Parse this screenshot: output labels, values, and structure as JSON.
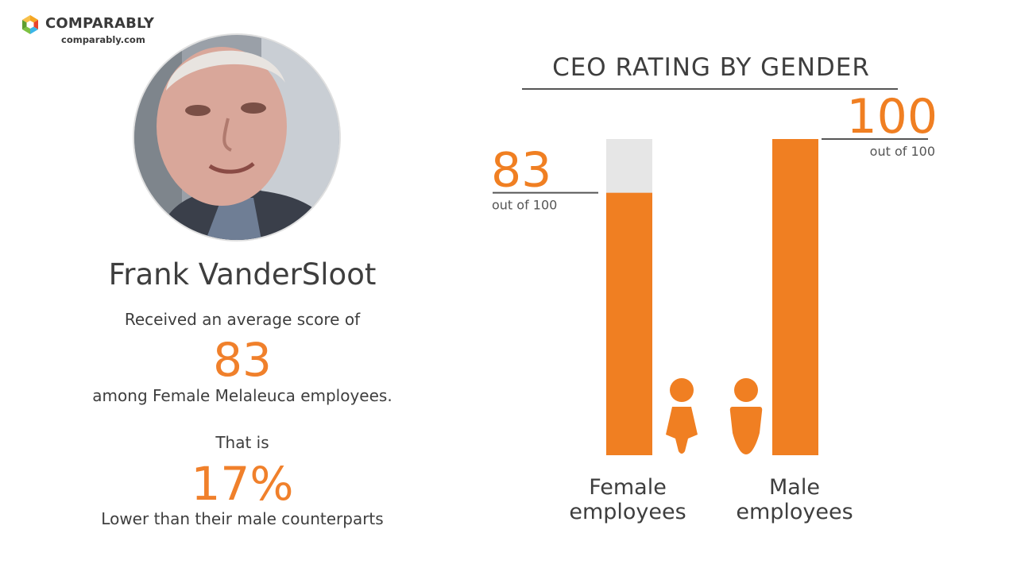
{
  "brand": {
    "name": "COMPARABLY",
    "url": "comparably.com",
    "colors": [
      "#f5a623",
      "#e8452c",
      "#3bb6e8",
      "#7dc142"
    ]
  },
  "profile": {
    "name": "Frank VanderSloot",
    "line_received": "Received an average score of",
    "score": "83",
    "line_among": "among Female Melaleuca employees.",
    "line_that_is": "That is",
    "percent": "17%",
    "line_lower": "Lower than their male counterparts"
  },
  "chart_data": {
    "type": "bar",
    "title": "CEO RATING BY GENDER",
    "categories": [
      "Female employees",
      "Male employees"
    ],
    "category_lines": [
      [
        "Female",
        "employees"
      ],
      [
        "Male",
        "employees"
      ]
    ],
    "values": [
      83,
      100
    ],
    "value_labels": [
      "83",
      "100"
    ],
    "value_suffix": "out of 100",
    "ylim": [
      0,
      100
    ],
    "bar_color": "#f07f22",
    "track_color": "#e6e6e6",
    "icons": [
      "female-person-icon",
      "male-person-icon"
    ]
  }
}
